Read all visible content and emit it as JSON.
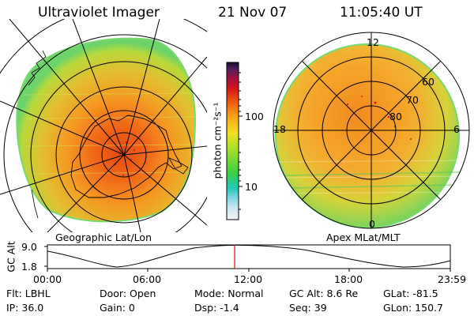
{
  "header": {
    "instrument": "Ultraviolet Imager",
    "date": "21 Nov 07",
    "time": "11:05:40 UT"
  },
  "left_map": {
    "label": "Geographic Lat/Lon"
  },
  "right_map": {
    "label": "Apex MLat/MLT",
    "mlt_labels": {
      "top": "12",
      "left": "18",
      "right": "6",
      "bottom": "0"
    },
    "lat_labels": [
      "60",
      "70",
      "80"
    ]
  },
  "colorbar": {
    "unit_label": "photon cm⁻²s⁻¹",
    "scale": "log",
    "tick_labels": [
      "100",
      "10"
    ]
  },
  "altitude_plot": {
    "axis_label": "GC Alt",
    "y_ticks": [
      "9.0",
      "1.8"
    ],
    "x_ticks": [
      "00:00",
      "06:00",
      "12:00",
      "18:00",
      "23:59"
    ],
    "marker_color": "#ff0000"
  },
  "info": {
    "filter": "Flt: LBHL",
    "ip": "IP: 36.0",
    "door": "Door: Open",
    "gain": "Gain:  0",
    "mode": "Mode: Normal",
    "dsp": "Dsp:   -1.4",
    "gc_alt": "GC Alt: 8.6 Re",
    "seq": "Seq: 39",
    "glat": "GLat: -81.5",
    "glon": "GLon: 150.7"
  }
}
